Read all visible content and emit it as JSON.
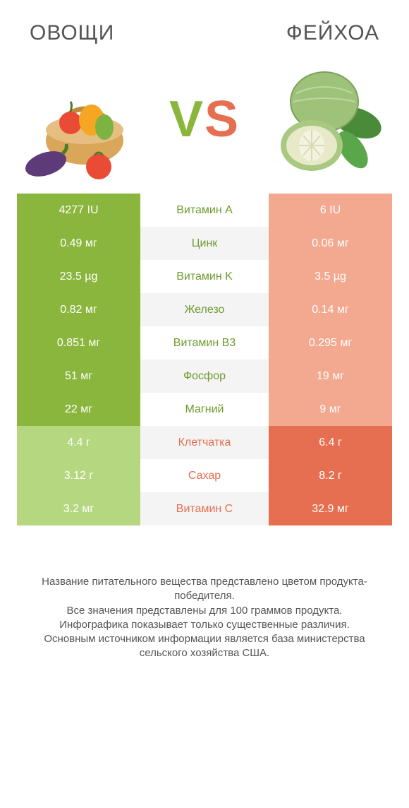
{
  "colors": {
    "green_win": "#8bb63e",
    "green_lose": "#b5d77f",
    "orange_win": "#e76f51",
    "orange_lose": "#f3a98f",
    "mid_green": "#6f9a2e",
    "mid_orange": "#e76f51",
    "bg": "#ffffff",
    "alt_row": "#f4f4f4"
  },
  "header": {
    "left_title": "ОВОЩИ",
    "right_title": "ФЕЙХОА",
    "vs_v": "V",
    "vs_s": "S"
  },
  "rows": [
    {
      "nutrient": "Витамин A",
      "left": "4277 IU",
      "right": "6 IU",
      "winner": "left"
    },
    {
      "nutrient": "Цинк",
      "left": "0.49 мг",
      "right": "0.06 мг",
      "winner": "left"
    },
    {
      "nutrient": "Витамин K",
      "left": "23.5 µg",
      "right": "3.5 µg",
      "winner": "left"
    },
    {
      "nutrient": "Железо",
      "left": "0.82 мг",
      "right": "0.14 мг",
      "winner": "left"
    },
    {
      "nutrient": "Витамин B3",
      "left": "0.851 мг",
      "right": "0.295 мг",
      "winner": "left"
    },
    {
      "nutrient": "Фосфор",
      "left": "51 мг",
      "right": "19 мг",
      "winner": "left"
    },
    {
      "nutrient": "Магний",
      "left": "22 мг",
      "right": "9 мг",
      "winner": "left"
    },
    {
      "nutrient": "Клетчатка",
      "left": "4.4 г",
      "right": "6.4 г",
      "winner": "right"
    },
    {
      "nutrient": "Сахар",
      "left": "3.12 г",
      "right": "8.2 г",
      "winner": "right"
    },
    {
      "nutrient": "Витамин C",
      "left": "3.2 мг",
      "right": "32.9 мг",
      "winner": "right"
    }
  ],
  "footer_lines": [
    "Название питательного вещества представлено цветом продукта-победителя.",
    "Все значения представлены для 100 граммов продукта.",
    "Инфографика показывает только существенные различия.",
    "Основным источником информации является база министерства сельского хозяйства США."
  ]
}
